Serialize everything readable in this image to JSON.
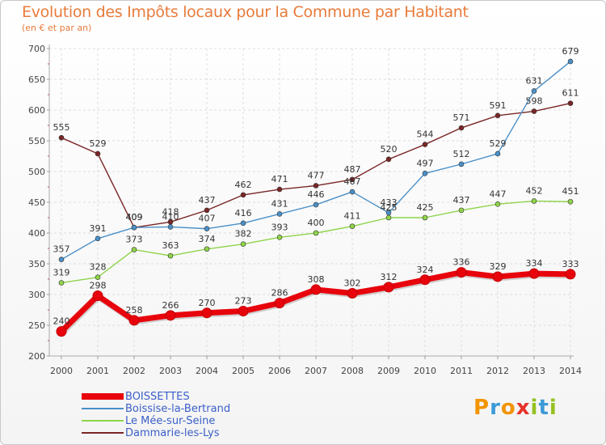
{
  "title": "Evolution des Impôts locaux pour la Commune par Habitant",
  "subtitle": "(en € et par an)",
  "logo": {
    "letters": [
      "P",
      "r",
      "o",
      "x",
      "i",
      "t",
      "i"
    ],
    "colors": [
      "#f29400",
      "#3c9ad6",
      "#f29400",
      "#e6332a",
      "#95c11f",
      "#3c9ad6",
      "#95c11f"
    ]
  },
  "chart_data": {
    "type": "line",
    "x": [
      "2000",
      "2001",
      "2002",
      "2003",
      "2004",
      "2005",
      "2006",
      "2007",
      "2008",
      "2009",
      "2010",
      "2011",
      "2012",
      "2013",
      "2014"
    ],
    "ylim": [
      200,
      700
    ],
    "yticks": [
      "200",
      "250",
      "300",
      "350",
      "400",
      "450",
      "500",
      "550",
      "600",
      "650",
      "700"
    ],
    "grid": true,
    "legend_position": "bottom-left",
    "series": [
      {
        "name": "BOISSETTES",
        "color": "#e8040c",
        "values": [
          240,
          298,
          258,
          266,
          270,
          273,
          286,
          308,
          302,
          312,
          324,
          336,
          329,
          334,
          333
        ]
      },
      {
        "name": "Boissise-la-Bertrand",
        "color": "#4a90c8",
        "values": [
          357,
          391,
          409,
          410,
          407,
          416,
          431,
          446,
          467,
          433,
          497,
          512,
          529,
          631,
          679
        ]
      },
      {
        "name": "Le Mée-sur-Seine",
        "color": "#8fd44a",
        "values": [
          319,
          328,
          373,
          363,
          374,
          382,
          393,
          400,
          411,
          425,
          425,
          437,
          447,
          452,
          451
        ]
      },
      {
        "name": "Dammarie-les-Lys",
        "color": "#7a2626",
        "values": [
          555,
          529,
          409,
          418,
          437,
          462,
          471,
          477,
          487,
          520,
          544,
          571,
          591,
          598,
          611
        ]
      }
    ]
  }
}
